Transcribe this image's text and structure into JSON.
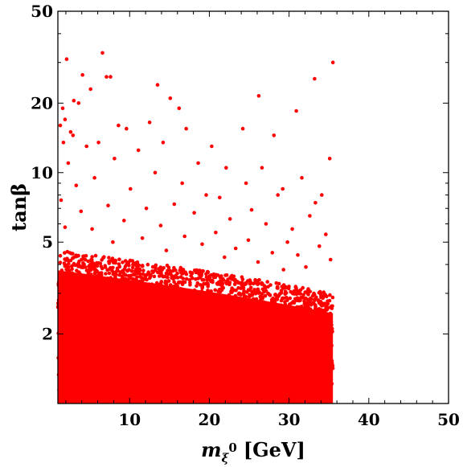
{
  "chart_data": {
    "type": "scatter",
    "xlabel": "m_ξ0 [GeV]",
    "xlabel_parts": {
      "symbol": "m",
      "subscript": "ξ",
      "superscript": "0",
      "unit": "[GeV]"
    },
    "ylabel": "tanβ",
    "xlim": [
      1,
      50
    ],
    "ylim": [
      1,
      50
    ],
    "yscale": "log",
    "x_ticks": [
      10,
      20,
      30,
      40,
      50
    ],
    "y_ticks": [
      2,
      5,
      10,
      20,
      50
    ],
    "x_tick_labels": [
      "10",
      "20",
      "30",
      "40",
      "50"
    ],
    "y_tick_labels": [
      "2",
      "5",
      "10",
      "20",
      "50"
    ],
    "grid": false,
    "marker_color": "#ff0000",
    "dense_region": {
      "x": [
        1,
        35.5
      ],
      "y_upper_at_x_min": 4.6,
      "y_upper_at_x_max": 3.0
    },
    "outlier_points": [
      {
        "x": 6.6,
        "y": 33
      },
      {
        "x": 2.1,
        "y": 31
      },
      {
        "x": 35.5,
        "y": 30
      },
      {
        "x": 4.1,
        "y": 26.5
      },
      {
        "x": 7.1,
        "y": 26
      },
      {
        "x": 7.6,
        "y": 26
      },
      {
        "x": 33.2,
        "y": 25.5
      },
      {
        "x": 13.5,
        "y": 24
      },
      {
        "x": 5.1,
        "y": 23
      },
      {
        "x": 26.2,
        "y": 21.5
      },
      {
        "x": 3.0,
        "y": 20.5
      },
      {
        "x": 3.6,
        "y": 20
      },
      {
        "x": 15.1,
        "y": 21
      },
      {
        "x": 1.6,
        "y": 19
      },
      {
        "x": 30.9,
        "y": 18.5
      },
      {
        "x": 1.9,
        "y": 17
      },
      {
        "x": 16.2,
        "y": 19
      },
      {
        "x": 1.3,
        "y": 16
      },
      {
        "x": 12.5,
        "y": 16.5
      },
      {
        "x": 8.6,
        "y": 16
      },
      {
        "x": 9.6,
        "y": 15.5
      },
      {
        "x": 2.6,
        "y": 15
      },
      {
        "x": 2.9,
        "y": 14.5
      },
      {
        "x": 17.1,
        "y": 15.5
      },
      {
        "x": 24.2,
        "y": 15.5
      },
      {
        "x": 6.1,
        "y": 13.5
      },
      {
        "x": 14.2,
        "y": 13.5
      },
      {
        "x": 28.1,
        "y": 14.5
      },
      {
        "x": 1.7,
        "y": 13.5
      },
      {
        "x": 4.6,
        "y": 13
      },
      {
        "x": 20.3,
        "y": 13
      },
      {
        "x": 11.1,
        "y": 12.5
      },
      {
        "x": 35.1,
        "y": 11.5
      },
      {
        "x": 8.1,
        "y": 11.5
      },
      {
        "x": 18.6,
        "y": 11
      },
      {
        "x": 2.3,
        "y": 11
      },
      {
        "x": 22.1,
        "y": 10.5
      },
      {
        "x": 26.6,
        "y": 10.5
      },
      {
        "x": 13.2,
        "y": 10
      },
      {
        "x": 31.6,
        "y": 9.5
      },
      {
        "x": 5.6,
        "y": 9.5
      },
      {
        "x": 16.6,
        "y": 9
      },
      {
        "x": 24.6,
        "y": 9
      },
      {
        "x": 3.3,
        "y": 8.8
      },
      {
        "x": 10.1,
        "y": 8.5
      },
      {
        "x": 29.2,
        "y": 8.5
      },
      {
        "x": 34.1,
        "y": 8
      },
      {
        "x": 19.6,
        "y": 8
      },
      {
        "x": 28.6,
        "y": 8
      },
      {
        "x": 21.3,
        "y": 7.8
      },
      {
        "x": 1.4,
        "y": 7.6
      },
      {
        "x": 33.3,
        "y": 7.4
      },
      {
        "x": 15.6,
        "y": 7.3
      },
      {
        "x": 7.3,
        "y": 7.2
      },
      {
        "x": 12.1,
        "y": 7.0
      },
      {
        "x": 25.3,
        "y": 6.9
      },
      {
        "x": 3.9,
        "y": 6.8
      },
      {
        "x": 18.1,
        "y": 6.7
      },
      {
        "x": 32.6,
        "y": 6.5
      },
      {
        "x": 22.6,
        "y": 6.3
      },
      {
        "x": 9.3,
        "y": 6.2
      },
      {
        "x": 27.1,
        "y": 6.0
      },
      {
        "x": 13.9,
        "y": 5.9
      },
      {
        "x": 1.9,
        "y": 5.8
      },
      {
        "x": 30.4,
        "y": 5.7
      },
      {
        "x": 5.3,
        "y": 5.7
      },
      {
        "x": 20.8,
        "y": 5.5
      },
      {
        "x": 34.6,
        "y": 5.4
      },
      {
        "x": 16.9,
        "y": 5.3
      },
      {
        "x": 11.6,
        "y": 5.2
      },
      {
        "x": 24.9,
        "y": 5.1
      },
      {
        "x": 29.8,
        "y": 5.0
      },
      {
        "x": 7.9,
        "y": 5.0
      },
      {
        "x": 19.1,
        "y": 4.9
      },
      {
        "x": 33.8,
        "y": 4.8
      },
      {
        "x": 23.3,
        "y": 4.7
      },
      {
        "x": 14.6,
        "y": 4.6
      },
      {
        "x": 27.9,
        "y": 4.5
      },
      {
        "x": 31.1,
        "y": 4.4
      },
      {
        "x": 21.9,
        "y": 4.3
      },
      {
        "x": 35.2,
        "y": 4.2
      },
      {
        "x": 26.1,
        "y": 4.1
      },
      {
        "x": 32.1,
        "y": 3.9
      },
      {
        "x": 29.3,
        "y": 3.8
      }
    ]
  }
}
